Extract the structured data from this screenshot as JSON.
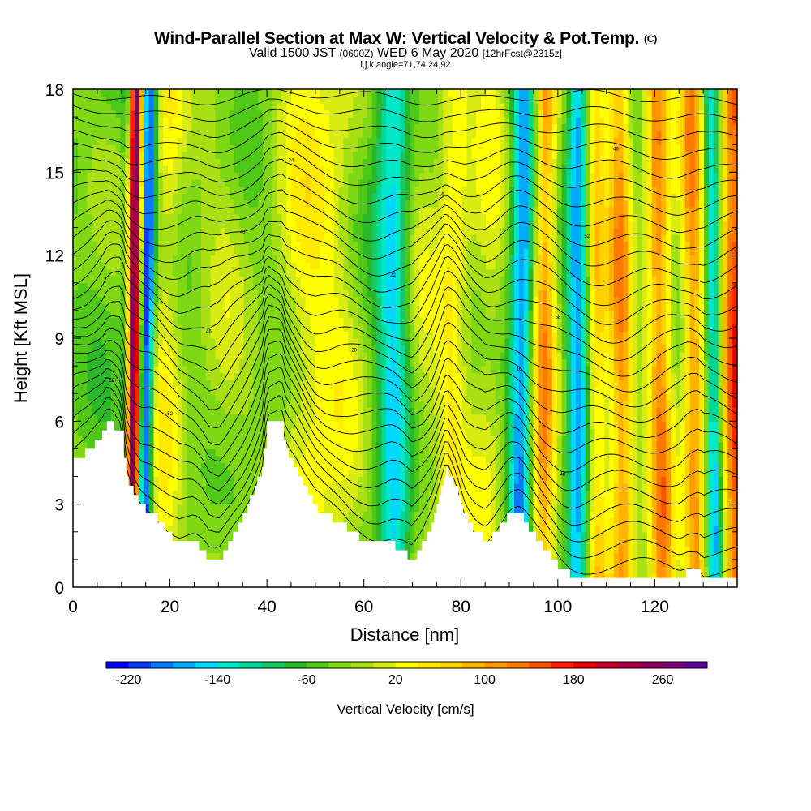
{
  "header": {
    "title": "Wind-Parallel Section at Max W: Vertical Velocity & Pot.Temp.",
    "title_unit": "(C)",
    "valid_prefix": "Valid 1500 JST",
    "valid_utc": "(0600Z)",
    "valid_date": "WED 6 May 2020",
    "forecast": "[12hrFcst@2315z]",
    "indices": "i,j,k,angle=71,74,24,92"
  },
  "chart_data": {
    "type": "heatmap",
    "xlabel": "Distance [nm]",
    "ylabel": "Height [Kft MSL]",
    "xlim": [
      0,
      137
    ],
    "ylim": [
      0,
      18
    ],
    "x_ticks": [
      0,
      20,
      40,
      60,
      80,
      100,
      120
    ],
    "y_ticks": [
      0,
      3,
      6,
      9,
      12,
      15,
      18
    ],
    "x_tick_labels": [
      "0",
      "20",
      "40",
      "60",
      "80",
      "100",
      "120"
    ],
    "y_tick_labels": [
      "0",
      "3",
      "6",
      "9",
      "12",
      "15",
      "18"
    ],
    "grid": false,
    "colorbar": {
      "title": "Vertical Velocity [cm/s]",
      "labels": [
        "-220",
        "-140",
        "-60",
        "20",
        "100",
        "180",
        "260"
      ],
      "label_values": [
        -220,
        -140,
        -60,
        20,
        100,
        180,
        260
      ],
      "range": [
        -240,
        300
      ],
      "colors": [
        "#0000ff",
        "#0a3cff",
        "#0a78ff",
        "#00aaff",
        "#00d8ff",
        "#00e8c8",
        "#00d896",
        "#18c864",
        "#28b828",
        "#50c818",
        "#7ed814",
        "#a8e014",
        "#d8ec14",
        "#ffff00",
        "#ffea00",
        "#ffd200",
        "#ffb400",
        "#ff9600",
        "#ff7800",
        "#ff5000",
        "#ff1e00",
        "#e60000",
        "#c80028",
        "#aa0046",
        "#8c005a",
        "#780078",
        "#5a0096"
      ]
    },
    "terrain": [
      [
        0,
        4.6
      ],
      [
        3,
        4.9
      ],
      [
        6,
        5.5
      ],
      [
        7,
        5.9
      ],
      [
        8,
        5.9
      ],
      [
        9,
        5.7
      ],
      [
        10,
        5.5
      ],
      [
        11,
        4.0
      ],
      [
        12,
        3.5
      ],
      [
        13,
        3.2
      ],
      [
        14,
        2.9
      ],
      [
        16,
        2.7
      ],
      [
        18,
        2.3
      ],
      [
        20,
        1.9
      ],
      [
        22,
        1.6
      ],
      [
        25,
        1.6
      ],
      [
        27,
        1.3
      ],
      [
        28,
        1.0
      ],
      [
        30,
        1.0
      ],
      [
        31,
        1.3
      ],
      [
        33,
        2.0
      ],
      [
        35,
        2.6
      ],
      [
        37,
        3.4
      ],
      [
        39,
        4.4
      ],
      [
        40,
        5.9
      ],
      [
        43,
        5.9
      ],
      [
        44,
        5.0
      ],
      [
        46,
        4.3
      ],
      [
        48,
        3.5
      ],
      [
        50,
        2.9
      ],
      [
        52,
        2.6
      ],
      [
        55,
        2.3
      ],
      [
        58,
        1.9
      ],
      [
        61,
        1.6
      ],
      [
        63,
        1.5
      ],
      [
        66,
        1.5
      ],
      [
        68,
        1.3
      ],
      [
        70,
        1.0
      ],
      [
        72,
        1.5
      ],
      [
        74,
        2.3
      ],
      [
        76,
        3.6
      ],
      [
        77,
        4.3
      ],
      [
        79,
        3.6
      ],
      [
        81,
        2.5
      ],
      [
        83,
        2.0
      ],
      [
        85,
        1.7
      ],
      [
        86,
        1.8
      ],
      [
        88,
        2.2
      ],
      [
        90,
        2.6
      ],
      [
        92,
        2.6
      ],
      [
        93,
        2.4
      ],
      [
        95,
        1.9
      ],
      [
        97,
        1.4
      ],
      [
        99,
        1.0
      ],
      [
        101,
        0.6
      ],
      [
        103,
        0.4
      ],
      [
        105,
        0.35
      ],
      [
        110,
        0.35
      ],
      [
        125,
        0.35
      ],
      [
        127,
        0.6
      ],
      [
        129,
        0.6
      ],
      [
        130,
        0.35
      ],
      [
        137,
        0.35
      ]
    ],
    "vertical_velocity_features": [
      {
        "x": 12.5,
        "w": 1.6,
        "amp": 300
      },
      {
        "x": 15.2,
        "w": 1.4,
        "amp": -210
      },
      {
        "x": 10.8,
        "w": 1.0,
        "amp": -80
      },
      {
        "x": 19,
        "w": 3.5,
        "amp": 60
      },
      {
        "x": 31,
        "w": 5,
        "amp": 25
      },
      {
        "x": 49,
        "w": 6.5,
        "amp": 65
      },
      {
        "x": 56,
        "w": 4,
        "amp": 25
      },
      {
        "x": 66,
        "w": 3.3,
        "amp": -110
      },
      {
        "x": 72,
        "w": 3.5,
        "amp": 30
      },
      {
        "x": 78,
        "w": 3,
        "amp": 70
      },
      {
        "x": 82,
        "w": 3,
        "amp": 20
      },
      {
        "x": 86,
        "w": 3,
        "amp": 40
      },
      {
        "x": 92.5,
        "w": 2.2,
        "amp": -150
      },
      {
        "x": 97.2,
        "w": 2.4,
        "amp": 140
      },
      {
        "x": 104.2,
        "w": 2.2,
        "amp": -140
      },
      {
        "x": 108,
        "w": 2.2,
        "amp": 100
      },
      {
        "x": 113,
        "w": 2.5,
        "amp": 140
      },
      {
        "x": 121,
        "w": 2.5,
        "amp": 150
      },
      {
        "x": 128,
        "w": 2.4,
        "amp": 140
      },
      {
        "x": 132,
        "w": 1.5,
        "amp": -120
      },
      {
        "x": 136.5,
        "w": 2.5,
        "amp": 190
      }
    ],
    "contour_labels": [
      "58",
      "52",
      "46",
      "40",
      "34",
      "28",
      "22",
      "16",
      "10"
    ]
  }
}
